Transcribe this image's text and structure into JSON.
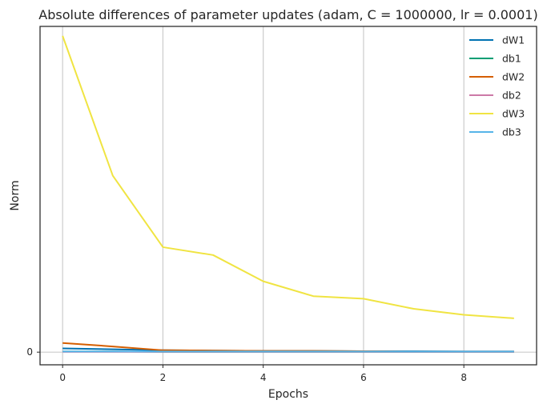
{
  "chart_data": {
    "type": "line",
    "title": "Absolute differences of parameter updates (adam, C = 1000000, lr = 0.0001)",
    "xlabel": "Epochs",
    "ylabel": "Norm",
    "x": [
      0,
      1,
      2,
      3,
      4,
      5,
      6,
      7,
      8,
      9
    ],
    "xlim": [
      -0.45,
      9.45
    ],
    "ylim": [
      -0.04,
      1.03
    ],
    "x_ticks": [
      0,
      2,
      4,
      6,
      8
    ],
    "y_ticks": [
      0
    ],
    "grid": "vertical",
    "legend_position": "top-right",
    "series": [
      {
        "name": "dW1",
        "color": "#0072b2",
        "values": [
          0.012,
          0.009,
          0.006,
          0.005,
          0.004,
          0.004,
          0.003,
          0.003,
          0.002,
          0.002
        ]
      },
      {
        "name": "db1",
        "color": "#009e73",
        "values": [
          0.002,
          0.002,
          0.001,
          0.001,
          0.001,
          0.001,
          0.001,
          0.001,
          0.001,
          0.001
        ]
      },
      {
        "name": "dW2",
        "color": "#d55e00",
        "values": [
          0.029,
          0.018,
          0.006,
          0.005,
          0.004,
          0.004,
          0.003,
          0.002,
          0.002,
          0.002
        ]
      },
      {
        "name": "db2",
        "color": "#cc79a7",
        "values": [
          0.001,
          0.001,
          0.001,
          0.001,
          0.001,
          0.001,
          0.001,
          0.001,
          0.001,
          0.001
        ]
      },
      {
        "name": "dW3",
        "color": "#f0e442",
        "values": [
          1.0,
          0.558,
          0.332,
          0.307,
          0.224,
          0.177,
          0.169,
          0.137,
          0.118,
          0.107
        ]
      },
      {
        "name": "db3",
        "color": "#56b4e9",
        "values": [
          0.002,
          0.002,
          0.002,
          0.002,
          0.002,
          0.002,
          0.002,
          0.002,
          0.002,
          0.002
        ]
      }
    ]
  }
}
